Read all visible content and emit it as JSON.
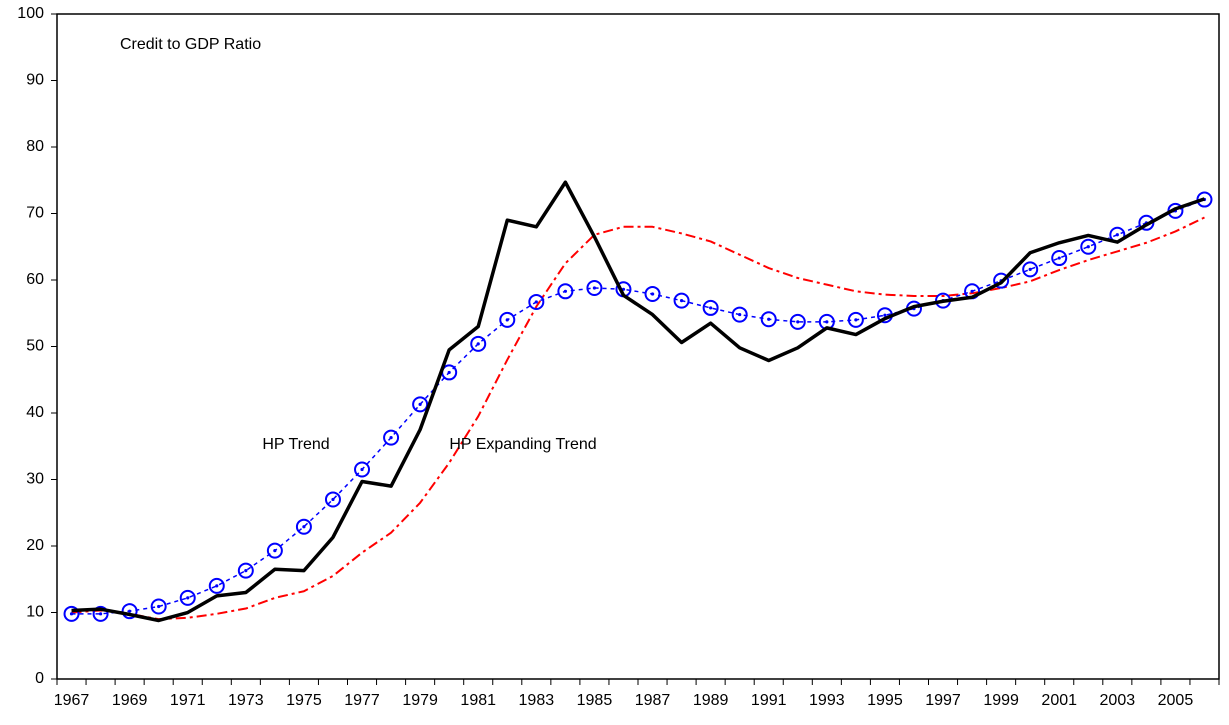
{
  "chart_data": {
    "type": "line",
    "categories": [
      "1967",
      null,
      "1969",
      null,
      "1971",
      null,
      "1973",
      null,
      "1975",
      null,
      "1977",
      null,
      "1979",
      null,
      "1981",
      null,
      "1983",
      null,
      "1985",
      null,
      "1987",
      null,
      "1989",
      null,
      "1991",
      null,
      "1993",
      null,
      "1995",
      null,
      "1997",
      null,
      "1999",
      null,
      "2001",
      null,
      "2003",
      null,
      "2005",
      null
    ],
    "series": [
      {
        "name": "Credit to GDP Ratio",
        "color": "#000000",
        "style": "solid",
        "values": [
          10.3,
          10.5,
          9.7,
          8.8,
          10.0,
          12.5,
          13.0,
          16.5,
          16.3,
          21.3,
          29.7,
          29.0,
          37.5,
          49.5,
          53.0,
          69.0,
          68.0,
          74.7,
          66.5,
          57.7,
          54.8,
          50.6,
          53.5,
          49.8,
          47.9,
          49.8,
          52.8,
          51.8,
          54.2,
          56.0,
          56.8,
          57.4,
          59.6,
          64.1,
          65.6,
          66.7,
          65.7,
          68.3,
          70.7,
          72.2
        ]
      },
      {
        "name": "HP Trend",
        "color": "#0000ff",
        "style": "dotted-circles",
        "values": [
          9.8,
          9.8,
          10.2,
          10.9,
          12.2,
          14.0,
          16.3,
          19.3,
          22.9,
          27.0,
          31.5,
          36.3,
          41.3,
          46.1,
          50.4,
          54.0,
          56.7,
          58.3,
          58.8,
          58.6,
          57.9,
          56.9,
          55.8,
          54.8,
          54.1,
          53.7,
          53.7,
          54.0,
          54.7,
          55.7,
          56.9,
          58.3,
          59.9,
          61.6,
          63.3,
          65.0,
          66.8,
          68.6,
          70.4,
          72.1
        ]
      },
      {
        "name": "HP Expanding Trend",
        "color": "#ff0000",
        "style": "dash-dot",
        "values": [
          10.0,
          10.3,
          9.8,
          9.0,
          9.2,
          9.8,
          10.6,
          12.2,
          13.2,
          15.5,
          19.0,
          22.0,
          26.5,
          32.5,
          39.5,
          48.0,
          56.0,
          62.5,
          66.8,
          68.0,
          68.0,
          67.0,
          65.8,
          63.8,
          61.8,
          60.3,
          59.3,
          58.3,
          57.8,
          57.6,
          57.6,
          58.0,
          58.8,
          59.8,
          61.5,
          63.0,
          64.3,
          65.6,
          67.3,
          69.4
        ]
      }
    ],
    "ylim": [
      0,
      100
    ],
    "yticks": [
      0,
      10,
      20,
      30,
      40,
      50,
      60,
      70,
      80,
      90,
      100
    ],
    "grid": false
  }
}
